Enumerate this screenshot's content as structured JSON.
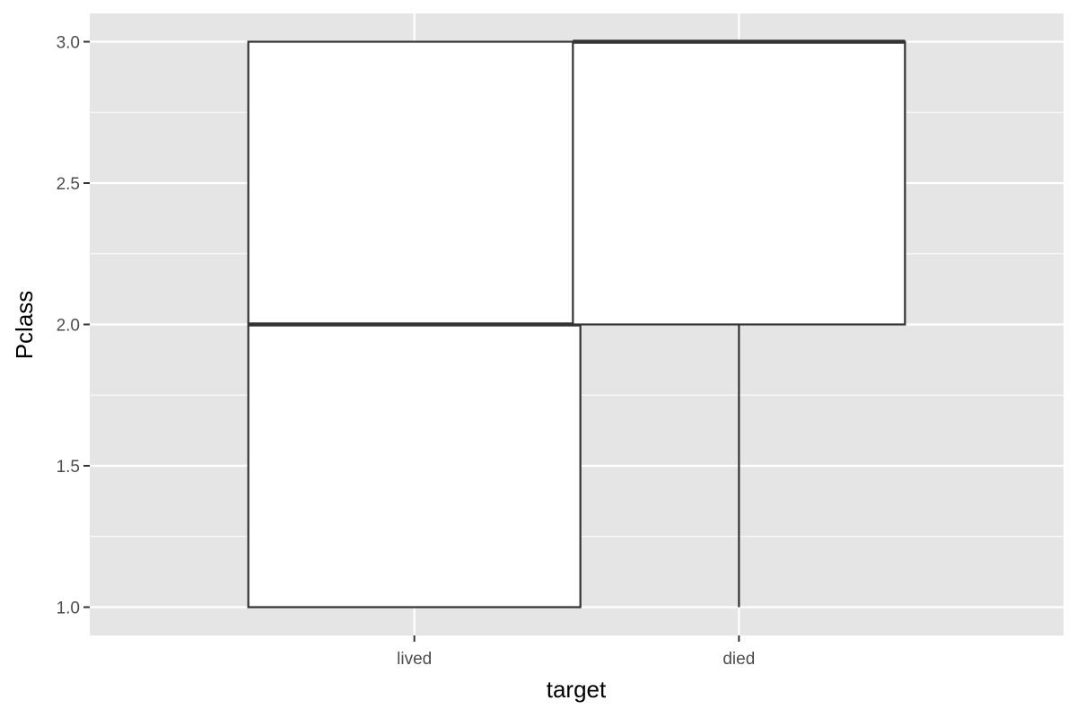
{
  "chart_data": {
    "type": "boxplot",
    "xlabel": "target",
    "ylabel": "Pclass",
    "categories": [
      "lived",
      "died"
    ],
    "boxes": [
      {
        "category": "lived",
        "min": 1.0,
        "q1": 1.0,
        "median": 2.0,
        "q3": 3.0,
        "max": 3.0
      },
      {
        "category": "died",
        "min": 1.0,
        "q1": 2.0,
        "median": 3.0,
        "q3": 3.0,
        "max": 3.0
      }
    ],
    "ylim": [
      0.9,
      3.1
    ],
    "yticks": [
      1.0,
      1.5,
      2.0,
      2.5,
      3.0
    ],
    "ytick_labels": [
      "1.0",
      "1.5",
      "2.0",
      "2.5",
      "3.0"
    ],
    "grid": true,
    "colors": {
      "panel_background": "#e5e5e5",
      "grid": "#ffffff",
      "box_fill": "#ffffff",
      "box_stroke": "#333333"
    }
  }
}
